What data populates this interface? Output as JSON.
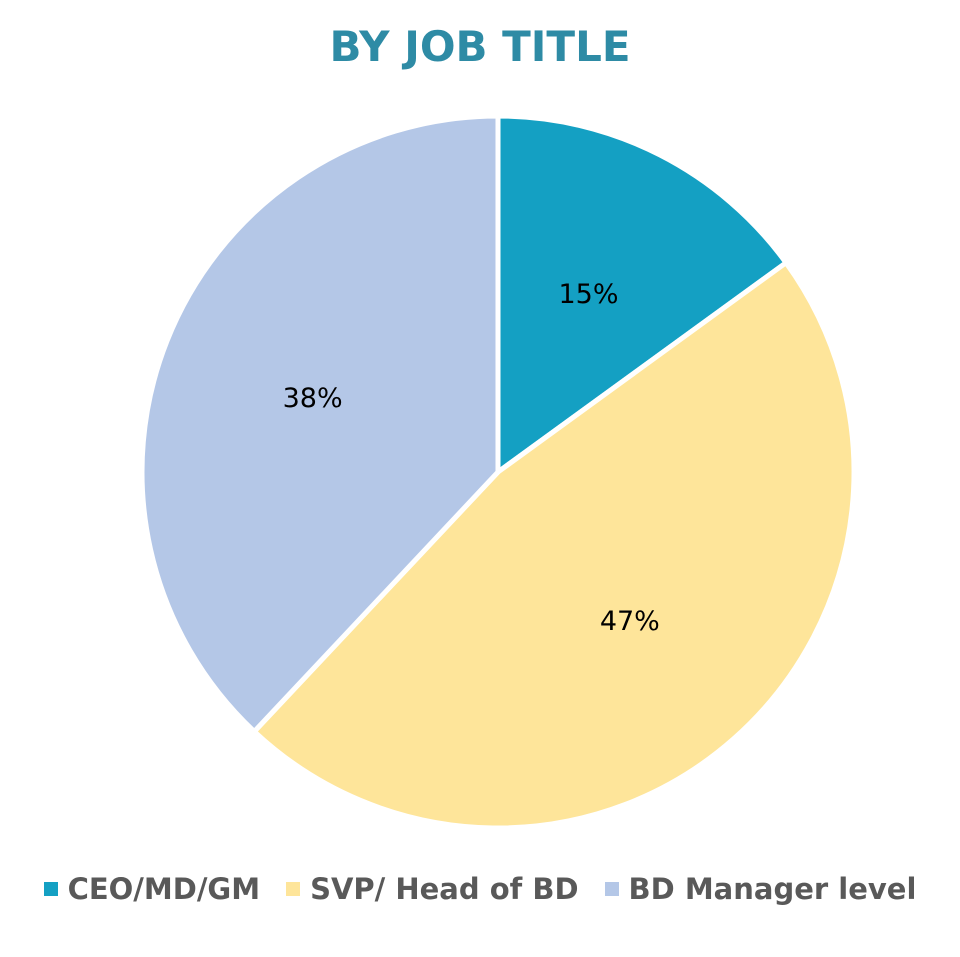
{
  "chart_data": {
    "type": "pie",
    "title": "BY JOB TITLE",
    "title_color": "#2E8BA5",
    "legend_position": "bottom",
    "categories": [
      "CEO/MD/GM",
      "SVP/ Head of BD",
      "BD Manager level"
    ],
    "values": [
      15,
      47,
      38
    ],
    "labels": [
      "15%",
      "47%",
      "38%"
    ],
    "colors": [
      "#14A0C3",
      "#FEE59A",
      "#B4C7E7"
    ],
    "start_angle": "12 o'clock",
    "direction": "clockwise"
  }
}
